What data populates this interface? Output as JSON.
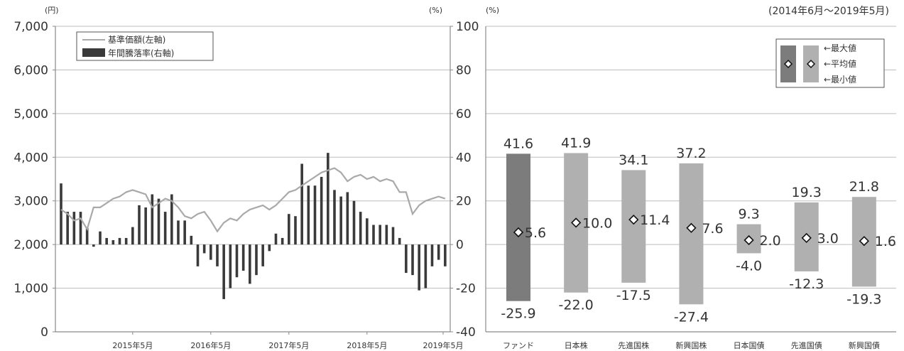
{
  "colors": {
    "background": "#ffffff",
    "axis": "#8a8a8a",
    "grid": "#bdbdbd",
    "text": "#333333",
    "price_line": "#a9a9a9",
    "bar_dark": "#3a3a3a",
    "fund_bar": "#7c7c7c",
    "index_bar": "#b0b0b0",
    "marker": "#111111"
  },
  "chart_data": [
    {
      "type": "line",
      "title": "",
      "y_left": {
        "unit": "(円)",
        "ticks": [
          "7,000",
          "6,000",
          "5,000",
          "4,000",
          "3,000",
          "2,000",
          "1,000",
          "0"
        ],
        "ylim": [
          0,
          7000
        ]
      },
      "y_right": {
        "unit": "(%)",
        "ticks": [
          "100",
          "80",
          "60",
          "40",
          "20",
          "0",
          "-20",
          "-40"
        ],
        "ylim": [
          -40,
          100
        ]
      },
      "x_ticks": [
        "2015年5月",
        "2016年5月",
        "2017年5月",
        "2018年5月",
        "2019年5月"
      ],
      "x_range_months": [
        "2014-06",
        "2019-05"
      ],
      "legend": {
        "placement": "top-left",
        "entries": [
          "基準価額(左軸)",
          "年間騰落率(右軸)"
        ]
      },
      "grid": true,
      "series": [
        {
          "name": "基準価額(左軸)",
          "axis": "left",
          "x": [
            "2014-06",
            "2014-07",
            "2014-08",
            "2014-09",
            "2014-10",
            "2014-11",
            "2014-12",
            "2015-01",
            "2015-02",
            "2015-03",
            "2015-04",
            "2015-05",
            "2015-06",
            "2015-07",
            "2015-08",
            "2015-09",
            "2015-10",
            "2015-11",
            "2015-12",
            "2016-01",
            "2016-02",
            "2016-03",
            "2016-04",
            "2016-05",
            "2016-06",
            "2016-07",
            "2016-08",
            "2016-09",
            "2016-10",
            "2016-11",
            "2016-12",
            "2017-01",
            "2017-02",
            "2017-03",
            "2017-04",
            "2017-05",
            "2017-06",
            "2017-07",
            "2017-08",
            "2017-09",
            "2017-10",
            "2017-11",
            "2017-12",
            "2018-01",
            "2018-02",
            "2018-03",
            "2018-04",
            "2018-05",
            "2018-06",
            "2018-07",
            "2018-08",
            "2018-09",
            "2018-10",
            "2018-11",
            "2018-12",
            "2019-01",
            "2019-02",
            "2019-03",
            "2019-04",
            "2019-05"
          ],
          "values": [
            2800,
            2700,
            2550,
            2600,
            2350,
            2850,
            2850,
            2950,
            3050,
            3100,
            3200,
            3250,
            3200,
            3150,
            2850,
            2950,
            3050,
            3000,
            2850,
            2650,
            2600,
            2700,
            2750,
            2550,
            2300,
            2500,
            2600,
            2550,
            2700,
            2800,
            2850,
            2900,
            2800,
            2900,
            3050,
            3200,
            3250,
            3350,
            3450,
            3550,
            3650,
            3700,
            3750,
            3650,
            3450,
            3550,
            3600,
            3500,
            3550,
            3450,
            3500,
            3450,
            3200,
            3200,
            2700,
            2900,
            3000,
            3050,
            3100,
            3050
          ]
        },
        {
          "name": "年間騰落率(右軸)",
          "axis": "right",
          "type": "bar",
          "x": [
            "2014-06",
            "2014-07",
            "2014-08",
            "2014-09",
            "2014-10",
            "2014-11",
            "2014-12",
            "2015-01",
            "2015-02",
            "2015-03",
            "2015-04",
            "2015-05",
            "2015-06",
            "2015-07",
            "2015-08",
            "2015-09",
            "2015-10",
            "2015-11",
            "2015-12",
            "2016-01",
            "2016-02",
            "2016-03",
            "2016-04",
            "2016-05",
            "2016-06",
            "2016-07",
            "2016-08",
            "2016-09",
            "2016-10",
            "2016-11",
            "2016-12",
            "2017-01",
            "2017-02",
            "2017-03",
            "2017-04",
            "2017-05",
            "2017-06",
            "2017-07",
            "2017-08",
            "2017-09",
            "2017-10",
            "2017-11",
            "2017-12",
            "2018-01",
            "2018-02",
            "2018-03",
            "2018-04",
            "2018-05",
            "2018-06",
            "2018-07",
            "2018-08",
            "2018-09",
            "2018-10",
            "2018-11",
            "2018-12",
            "2019-01",
            "2019-02",
            "2019-03",
            "2019-04",
            "2019-05"
          ],
          "values": [
            28,
            15,
            15,
            15,
            8,
            -1,
            6,
            3,
            2,
            3,
            3,
            8,
            18,
            17,
            23,
            21,
            15,
            23,
            11,
            11,
            4,
            -10,
            -4,
            -7,
            -10,
            -25,
            -20,
            -15,
            -12,
            -18,
            -14,
            -10,
            -3,
            5,
            3,
            14,
            13,
            37,
            27,
            27,
            31,
            42,
            25,
            22,
            24,
            20,
            15,
            12,
            9,
            9,
            9,
            8,
            3,
            -13,
            -14,
            -21,
            -20,
            -10,
            -7,
            -10
          ]
        }
      ]
    },
    {
      "type": "bar",
      "title": "",
      "period": "(2014年6月〜2019年5月)",
      "unit": "(%)",
      "ylim": [
        -40,
        100
      ],
      "legend": {
        "placement": "top-right",
        "entries": [
          "←最大値",
          "←平均値",
          "←最小値"
        ]
      },
      "grid": true,
      "categories": [
        "ファンド",
        "日本株",
        "先進国株",
        "新興国株",
        "日本国債",
        "先進国債",
        "新興国債"
      ],
      "max": [
        41.6,
        41.9,
        34.1,
        37.2,
        9.3,
        19.3,
        21.8
      ],
      "avg": [
        5.6,
        10.0,
        11.4,
        7.6,
        2.0,
        3.0,
        1.6
      ],
      "min": [
        -25.9,
        -22.0,
        -17.5,
        -27.4,
        -4.0,
        -12.3,
        -19.3
      ],
      "labels": {
        "max": [
          "41.6",
          "41.9",
          "34.1",
          "37.2",
          "9.3",
          "19.3",
          "21.8"
        ],
        "avg": [
          "5.6",
          "10.0",
          "11.4",
          "7.6",
          "2.0",
          "3.0",
          "1.6"
        ],
        "min": [
          "-25.9",
          "-22.0",
          "-17.5",
          "-27.4",
          "-4.0",
          "-12.3",
          "-19.3"
        ]
      }
    }
  ]
}
